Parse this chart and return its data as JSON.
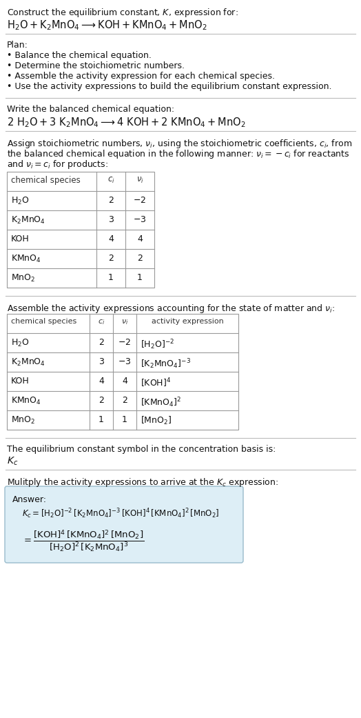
{
  "bg_color": "#ffffff",
  "text_color": "#111111",
  "line_color": "#bbbbbb",
  "answer_box_bg": "#ddeef6",
  "answer_box_border": "#99bbcc",
  "title_line1": "Construct the equilibrium constant, $K$, expression for:",
  "title_line2": "$\\mathrm{H_2O + K_2MnO_4 \\longrightarrow KOH + KMnO_4 + MnO_2}$",
  "plan_header": "Plan:",
  "plan_items": [
    "• Balance the chemical equation.",
    "• Determine the stoichiometric numbers.",
    "• Assemble the activity expression for each chemical species.",
    "• Use the activity expressions to build the equilibrium constant expression."
  ],
  "balanced_header": "Write the balanced chemical equation:",
  "balanced_eq": "$\\mathrm{2\\ H_2O + 3\\ K_2MnO_4 \\longrightarrow 4\\ KOH + 2\\ KMnO_4 + MnO_2}$",
  "stoich_intro_lines": [
    "Assign stoichiometric numbers, $\\nu_i$, using the stoichiometric coefficients, $c_i$, from",
    "the balanced chemical equation in the following manner: $\\nu_i = -c_i$ for reactants",
    "and $\\nu_i = c_i$ for products:"
  ],
  "table1_headers": [
    "chemical species",
    "$c_i$",
    "$\\nu_i$"
  ],
  "table1_rows": [
    [
      "$\\mathrm{H_2O}$",
      "2",
      "$-2$"
    ],
    [
      "$\\mathrm{K_2MnO_4}$",
      "3",
      "$-3$"
    ],
    [
      "KOH",
      "4",
      "4"
    ],
    [
      "$\\mathrm{KMnO_4}$",
      "2",
      "2"
    ],
    [
      "$\\mathrm{MnO_2}$",
      "1",
      "1"
    ]
  ],
  "assemble_intro": "Assemble the activity expressions accounting for the state of matter and $\\nu_i$:",
  "table2_headers": [
    "chemical species",
    "$c_i$",
    "$\\nu_i$",
    "activity expression"
  ],
  "table2_rows": [
    [
      "$\\mathrm{H_2O}$",
      "2",
      "$-2$",
      "$[\\mathrm{H_2O}]^{-2}$"
    ],
    [
      "$\\mathrm{K_2MnO_4}$",
      "3",
      "$-3$",
      "$[\\mathrm{K_2MnO_4}]^{-3}$"
    ],
    [
      "KOH",
      "4",
      "4",
      "$[\\mathrm{KOH}]^4$"
    ],
    [
      "$\\mathrm{KMnO_4}$",
      "2",
      "2",
      "$[\\mathrm{KMnO_4}]^2$"
    ],
    [
      "$\\mathrm{MnO_2}$",
      "1",
      "1",
      "$[\\mathrm{MnO_2}]$"
    ]
  ],
  "kc_intro": "The equilibrium constant symbol in the concentration basis is:",
  "kc_symbol": "$K_c$",
  "multiply_intro": "Mulitply the activity expressions to arrive at the $K_c$ expression:",
  "answer_label": "Answer:",
  "answer_line1": "$K_c = [\\mathrm{H_2O}]^{-2}\\, [\\mathrm{K_2MnO_4}]^{-3}\\, [\\mathrm{KOH}]^4\\, [\\mathrm{KMnO_4}]^2\\, [\\mathrm{MnO_2}]$",
  "answer_line2": "$= \\dfrac{[\\mathrm{KOH}]^4\\, [\\mathrm{KMnO_4}]^2\\, [\\mathrm{MnO_2}]}{[\\mathrm{H_2O}]^2\\, [\\mathrm{K_2MnO_4}]^3}$"
}
